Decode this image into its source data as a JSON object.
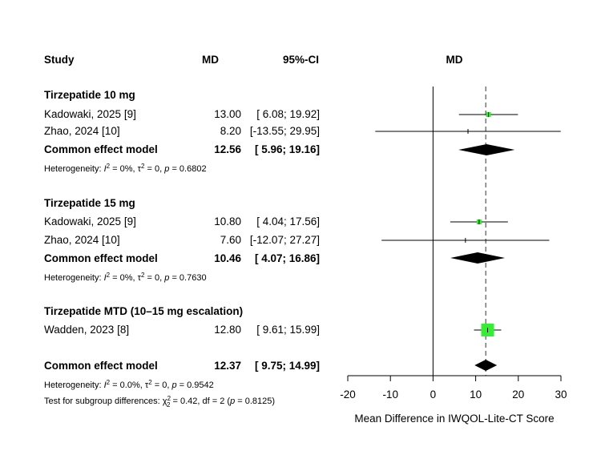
{
  "headers": {
    "study": "Study",
    "md": "MD",
    "ci": "95%-CI",
    "plot": "MD"
  },
  "subgroups": [
    {
      "label": "Tirzepatide 10 mg",
      "studies": [
        {
          "name": "Kadowaki, 2025 [9]",
          "md_text": "13.00",
          "ci_text": "[ 6.08; 19.92]"
        },
        {
          "name": "Zhao, 2024 [10]",
          "md_text": "8.20",
          "ci_text": "[-13.55; 29.95]"
        }
      ],
      "pooled": {
        "name": "Common effect model",
        "md_text": "12.56",
        "ci_text": "[ 5.96; 19.16]"
      },
      "heterogeneity": {
        "prefix": "Heterogeneity: ",
        "i2": "I",
        "i2_value": " = 0%, ",
        "tau": "τ",
        "tau_value": " = 0, ",
        "p": "p",
        "p_value": " = 0.6802"
      }
    },
    {
      "label": "Tirzepatide 15 mg",
      "studies": [
        {
          "name": "Kadowaki, 2025 [9]",
          "md_text": "10.80",
          "ci_text": "[ 4.04; 17.56]"
        },
        {
          "name": "Zhao, 2024 [10]",
          "md_text": "7.60",
          "ci_text": "[-12.07; 27.27]"
        }
      ],
      "pooled": {
        "name": "Common effect model",
        "md_text": "10.46",
        "ci_text": "[ 4.07; 16.86]"
      },
      "heterogeneity": {
        "prefix": "Heterogeneity: ",
        "i2": "I",
        "i2_value": " = 0%, ",
        "tau": "τ",
        "tau_value": " = 0, ",
        "p": "p",
        "p_value": " = 0.7630"
      }
    },
    {
      "label": "Tirzepatide MTD (10–15 mg escalation)",
      "studies": [
        {
          "name": "Wadden, 2023 [8]",
          "md_text": "12.80",
          "ci_text": "[ 9.61; 15.99]"
        }
      ]
    }
  ],
  "overall": {
    "name": "Common effect model",
    "md_text": "12.37",
    "ci_text": "[ 9.75; 14.99]",
    "heterogeneity": {
      "prefix": "Heterogeneity: ",
      "i2": "I",
      "i2_value": " = 0.0%, ",
      "tau": "τ",
      "tau_value": " = 0, ",
      "p": "p",
      "p_value": " = 0.9542"
    },
    "subgroup_test": {
      "prefix": "Test for subgroup differences: ",
      "chi": "χ",
      "chi_sub": "2",
      "chi_sup": "2",
      "chi_value": " = 0.42, df = 2 (",
      "p": "p",
      "p_value": " = 0.8125)"
    }
  },
  "chart_data": {
    "type": "forest",
    "xlabel": "Mean Difference in IWQOL-Lite-CT Score",
    "xlim": [
      -20,
      30
    ],
    "xticks": [
      -20,
      -10,
      0,
      10,
      20,
      30
    ],
    "xtick_labels": [
      "-20",
      "-10",
      "0",
      "10",
      "20",
      "30"
    ],
    "null_line": 0,
    "summary_line": 12.37,
    "studies": [
      {
        "subgroup": "Tirzepatide 10 mg",
        "name": "Kadowaki, 2025 [9]",
        "md": 13.0,
        "lower": 6.08,
        "upper": 19.92,
        "weight_box": "small"
      },
      {
        "subgroup": "Tirzepatide 10 mg",
        "name": "Zhao, 2024 [10]",
        "md": 8.2,
        "lower": -13.55,
        "upper": 29.95,
        "weight_box": "tiny"
      },
      {
        "subgroup": "Tirzepatide 15 mg",
        "name": "Kadowaki, 2025 [9]",
        "md": 10.8,
        "lower": 4.04,
        "upper": 17.56,
        "weight_box": "small"
      },
      {
        "subgroup": "Tirzepatide 15 mg",
        "name": "Zhao, 2024 [10]",
        "md": 7.6,
        "lower": -12.07,
        "upper": 27.27,
        "weight_box": "tiny"
      },
      {
        "subgroup": "Tirzepatide MTD (10–15 mg escalation)",
        "name": "Wadden, 2023 [8]",
        "md": 12.8,
        "lower": 9.61,
        "upper": 15.99,
        "weight_box": "large"
      }
    ],
    "pooled": [
      {
        "subgroup": "Tirzepatide 10 mg",
        "md": 12.56,
        "lower": 5.96,
        "upper": 19.16
      },
      {
        "subgroup": "Tirzepatide 15 mg",
        "md": 10.46,
        "lower": 4.07,
        "upper": 16.86
      },
      {
        "subgroup": "overall",
        "md": 12.37,
        "lower": 9.75,
        "upper": 14.99
      }
    ],
    "colors": {
      "box": "#33ee33",
      "line": "#000000",
      "diamond": "#000000"
    }
  }
}
